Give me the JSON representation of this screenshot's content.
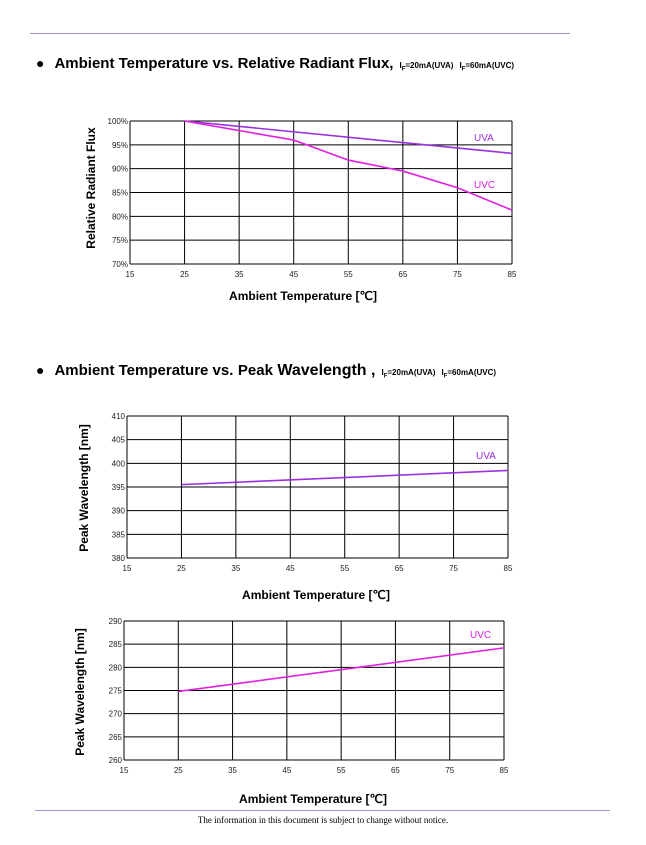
{
  "sections": [
    {
      "title": "Ambient Temperature vs. Relative Radiant Flux,",
      "cond_uva": "=20mA(UVA)",
      "cond_uvc": "=60mA(UVC)",
      "cond_symbol": "I",
      "cond_sub": "F"
    },
    {
      "title_a": "Ambient Temperature vs.",
      "title_b": "Peak",
      "title_c": "Wavelength ,",
      "cond_uva": "=20mA(UVA)",
      "cond_uvc": "=60mA(UVC)",
      "cond_symbol": "I",
      "cond_sub": "F"
    }
  ],
  "footer": "The information in this document is subject to change without notice.",
  "chart_data": [
    {
      "type": "line",
      "ylabel": "Relative Radiant Flux",
      "xlabel": "Ambient Temperature [℃]",
      "x_ticks": [
        "15",
        "25",
        "35",
        "45",
        "55",
        "65",
        "75",
        "85"
      ],
      "y_ticks": [
        "70%",
        "75%",
        "80%",
        "85%",
        "90%",
        "95%",
        "100%"
      ],
      "xlim": [
        15,
        85
      ],
      "ylim": [
        70,
        100
      ],
      "series": [
        {
          "name": "UVA",
          "color": "#9b30e0",
          "x": [
            25,
            85
          ],
          "y": [
            100,
            93.2
          ]
        },
        {
          "name": "UVC",
          "color": "#e020e0",
          "x": [
            25,
            45,
            55,
            65,
            75,
            85
          ],
          "y": [
            100,
            96.0,
            91.8,
            89.5,
            86.0,
            81.3
          ]
        }
      ],
      "grid": true
    },
    {
      "type": "line",
      "ylabel": "Peak Wavelength [nm]",
      "xlabel": "Ambient Temperature [℃]",
      "x_ticks": [
        "15",
        "25",
        "35",
        "45",
        "55",
        "65",
        "75",
        "85"
      ],
      "y_ticks": [
        "380",
        "385",
        "390",
        "395",
        "400",
        "405",
        "410"
      ],
      "xlim": [
        15,
        85
      ],
      "ylim": [
        380,
        410
      ],
      "series": [
        {
          "name": "UVA",
          "color": "#9b30e0",
          "x": [
            25,
            85
          ],
          "y": [
            395.5,
            398.5
          ]
        }
      ],
      "grid": true
    },
    {
      "type": "line",
      "ylabel": "Peak Wavelength [nm]",
      "xlabel": "Ambient Temperature [℃]",
      "x_ticks": [
        "15",
        "25",
        "35",
        "45",
        "55",
        "65",
        "75",
        "85"
      ],
      "y_ticks": [
        "260",
        "265",
        "270",
        "275",
        "280",
        "285",
        "290"
      ],
      "xlim": [
        15,
        85
      ],
      "ylim": [
        260,
        290
      ],
      "series": [
        {
          "name": "UVC",
          "color": "#e020e0",
          "x": [
            25,
            85
          ],
          "y": [
            274.8,
            284.2
          ]
        }
      ],
      "grid": true
    }
  ]
}
